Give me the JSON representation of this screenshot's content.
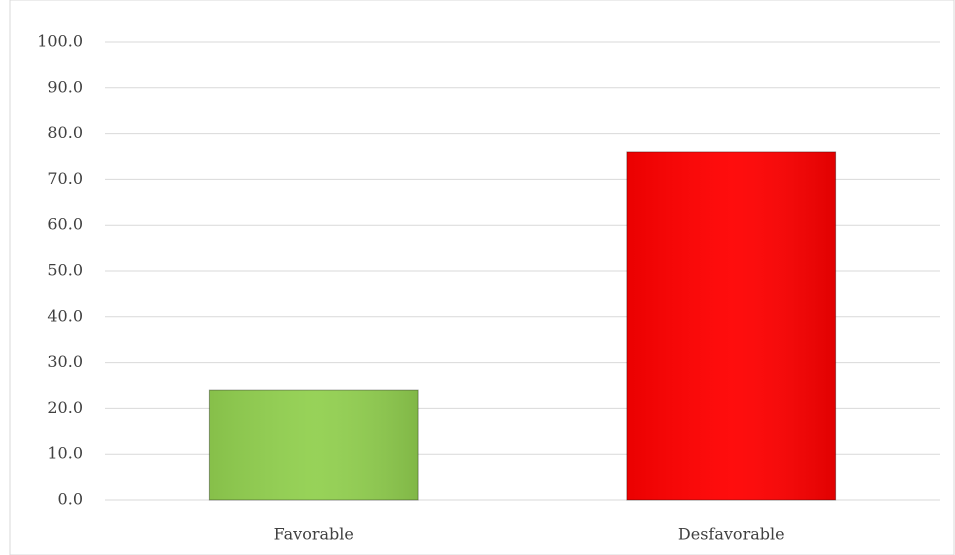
{
  "chart_data": {
    "type": "bar",
    "categories": [
      "Favorable",
      "Desfavorable"
    ],
    "values": [
      24,
      76
    ],
    "colors": [
      "#92d050",
      "#ff0000"
    ],
    "ylim": [
      0,
      100
    ],
    "yticks": [
      {
        "value": 0,
        "label": "0.0"
      },
      {
        "value": 10,
        "label": "10.0"
      },
      {
        "value": 20,
        "label": "20.0"
      },
      {
        "value": 30,
        "label": "30.0"
      },
      {
        "value": 40,
        "label": "40.0"
      },
      {
        "value": 50,
        "label": "50.0"
      },
      {
        "value": 60,
        "label": "60.0"
      },
      {
        "value": 70,
        "label": "70.0"
      },
      {
        "value": 80,
        "label": "80.0"
      },
      {
        "value": 90,
        "label": "90.0"
      },
      {
        "value": 100,
        "label": "100.0"
      }
    ],
    "grid": true
  }
}
